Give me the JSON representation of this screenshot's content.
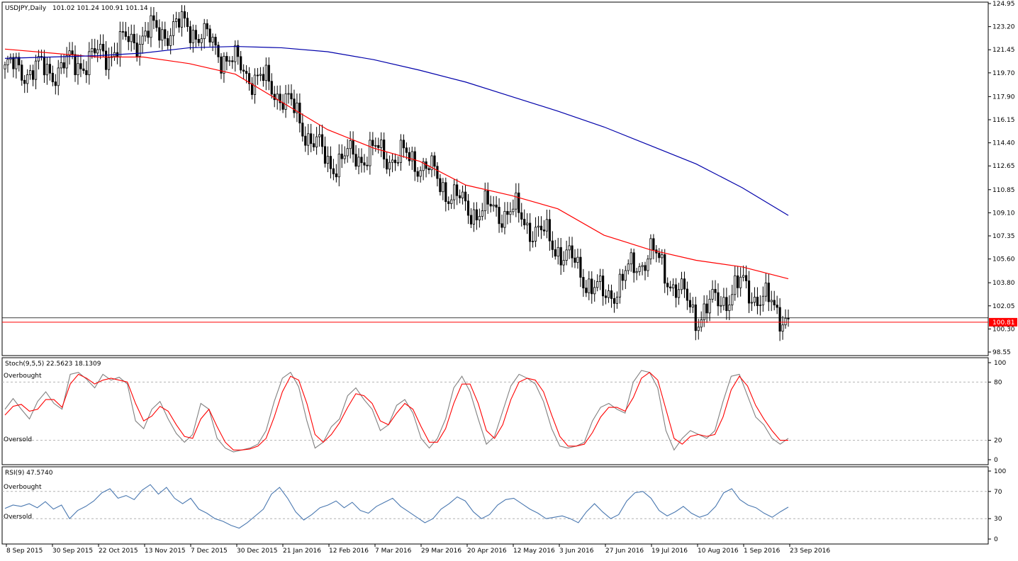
{
  "header": {
    "symbol_label": "USDJPY,Daily",
    "ohlc_label": "101.02 101.24 100.91 101.14"
  },
  "stoch_header": {
    "label": "Stoch(9,5,5) 22.5623 18.1309"
  },
  "rsi_header": {
    "label": "RSI(9) 47.5740"
  },
  "levels": {
    "overbought": "Overbought",
    "oversold": "Oversold",
    "stoch_overbought": 80,
    "stoch_oversold": 20,
    "rsi_overbought": 70,
    "rsi_oversold": 30
  },
  "colors": {
    "background": "#ffffff",
    "candle": "#000000",
    "ma_fast": "#ff0000",
    "ma_slow": "#0000aa",
    "stoch_main": "#808080",
    "stoch_signal": "#ff0000",
    "rsi": "#4a78b0",
    "price_marker": "#ff0000",
    "grid_dash": "#b4b4b4"
  },
  "chart_data": [
    {
      "type": "candlestick",
      "title": "USDJPY,Daily",
      "ohlc_readout": [
        101.02,
        101.24,
        100.91,
        101.14
      ],
      "y_ticks": [
        "124.95",
        "123.20",
        "121.45",
        "119.70",
        "117.90",
        "116.15",
        "114.40",
        "112.65",
        "110.85",
        "109.10",
        "107.35",
        "105.60",
        "103.80",
        "102.05",
        "100.30",
        "98.55"
      ],
      "ylim": [
        98.55,
        124.95
      ],
      "x_ticks": [
        "8 Sep 2015",
        "30 Sep 2015",
        "22 Oct 2015",
        "13 Nov 2015",
        "7 Dec 2015",
        "30 Dec 2015",
        "21 Jan 2016",
        "12 Feb 2016",
        "7 Mar 2016",
        "29 Mar 2016",
        "20 Apr 2016",
        "12 May 2016",
        "3 Jun 2016",
        "27 Jun 2016",
        "19 Jul 2016",
        "10 Aug 2016",
        "1 Sep 2016",
        "23 Sep 2016"
      ],
      "current_price_label": "100.81",
      "current_price": 100.81,
      "horizontal_line": 101.14,
      "close_path": [
        [
          "8 Sep 2015",
          120.0
        ],
        [
          "30 Sep 2015",
          119.9
        ],
        [
          "22 Oct 2015",
          120.9
        ],
        [
          "13 Nov 2015",
          122.6
        ],
        [
          "7 Dec 2015",
          123.3
        ],
        [
          "30 Dec 2015",
          120.3
        ],
        [
          "21 Jan 2016",
          118.1
        ],
        [
          "12 Feb 2016",
          112.9
        ],
        [
          "7 Mar 2016",
          113.7
        ],
        [
          "29 Mar 2016",
          113.0
        ],
        [
          "20 Apr 2016",
          109.4
        ],
        [
          "12 May 2016",
          109.2
        ],
        [
          "3 Jun 2016",
          106.5
        ],
        [
          "27 Jun 2016",
          102.6
        ],
        [
          "19 Jul 2016",
          106.2
        ],
        [
          "10 Aug 2016",
          101.3
        ],
        [
          "1 Sep 2016",
          103.6
        ],
        [
          "23 Sep 2016",
          101.1
        ]
      ],
      "series": [
        {
          "name": "",
          "values": [
            121.5,
            121.2,
            120.9,
            120.9,
            120.4,
            119.6,
            117.5,
            115.4,
            114.0,
            113.0,
            111.2,
            110.4,
            109.4,
            107.4,
            106.3,
            105.5,
            105.0,
            104.1
          ]
        },
        {
          "name": "",
          "values": [
            120.8,
            120.9,
            121.0,
            121.2,
            121.6,
            121.7,
            121.6,
            121.3,
            120.7,
            119.9,
            119.0,
            117.9,
            116.8,
            115.6,
            114.2,
            112.8,
            111.0,
            108.9
          ]
        }
      ]
    },
    {
      "type": "line",
      "title": "Stoch(9,5,5)",
      "readout": [
        22.5623,
        18.1309
      ],
      "y_ticks": [
        100,
        80,
        20,
        0
      ],
      "ylim": [
        0,
        100
      ],
      "series": [
        {
          "name": "",
          "values": [
            52,
            63,
            52,
            42,
            60,
            70,
            58,
            52,
            88,
            90,
            83,
            74,
            88,
            82,
            85,
            78,
            40,
            32,
            52,
            60,
            42,
            27,
            18,
            26,
            58,
            52,
            22,
            12,
            8,
            10,
            12,
            16,
            30,
            60,
            84,
            90,
            75,
            40,
            12,
            18,
            34,
            42,
            66,
            74,
            62,
            52,
            30,
            36,
            56,
            62,
            48,
            22,
            12,
            22,
            42,
            74,
            86,
            70,
            42,
            16,
            24,
            50,
            76,
            88,
            84,
            78,
            60,
            32,
            14,
            12,
            14,
            18,
            40,
            54,
            58,
            52,
            48,
            80,
            92,
            90,
            74,
            30,
            10,
            22,
            30,
            26,
            22,
            30,
            60,
            86,
            88,
            66,
            44,
            36,
            22,
            16,
            22
          ]
        },
        {
          "name": "",
          "values": [
            46,
            55,
            57,
            50,
            52,
            62,
            62,
            54,
            78,
            88,
            84,
            78,
            82,
            84,
            82,
            80,
            58,
            40,
            45,
            55,
            50,
            36,
            24,
            22,
            42,
            52,
            34,
            18,
            10,
            10,
            11,
            14,
            22,
            44,
            70,
            86,
            82,
            58,
            26,
            18,
            26,
            38,
            54,
            68,
            66,
            58,
            40,
            36,
            48,
            58,
            52,
            34,
            18,
            18,
            32,
            58,
            78,
            78,
            58,
            30,
            22,
            36,
            62,
            80,
            84,
            82,
            70,
            46,
            24,
            14,
            14,
            16,
            28,
            44,
            54,
            54,
            50,
            64,
            84,
            90,
            82,
            52,
            22,
            16,
            24,
            26,
            24,
            26,
            44,
            72,
            86,
            76,
            56,
            42,
            30,
            20,
            20
          ]
        }
      ]
    },
    {
      "type": "line",
      "title": "RSI(9)",
      "readout": [
        47.574
      ],
      "y_ticks": [
        100,
        70,
        30,
        0
      ],
      "ylim": [
        0,
        100
      ],
      "series": [
        {
          "name": "",
          "values": [
            45,
            50,
            48,
            52,
            46,
            55,
            44,
            50,
            30,
            42,
            48,
            56,
            68,
            74,
            60,
            64,
            58,
            72,
            80,
            66,
            76,
            60,
            52,
            60,
            44,
            38,
            30,
            26,
            20,
            16,
            24,
            34,
            44,
            66,
            76,
            60,
            40,
            28,
            36,
            46,
            50,
            56,
            46,
            54,
            42,
            38,
            48,
            54,
            60,
            48,
            40,
            32,
            24,
            30,
            44,
            52,
            62,
            56,
            40,
            30,
            36,
            50,
            58,
            60,
            52,
            44,
            38,
            30,
            32,
            34,
            30,
            24,
            40,
            52,
            40,
            30,
            36,
            56,
            68,
            70,
            60,
            42,
            34,
            40,
            48,
            38,
            32,
            36,
            48,
            68,
            74,
            58,
            50,
            46,
            38,
            32,
            40,
            47
          ]
        }
      ]
    }
  ]
}
